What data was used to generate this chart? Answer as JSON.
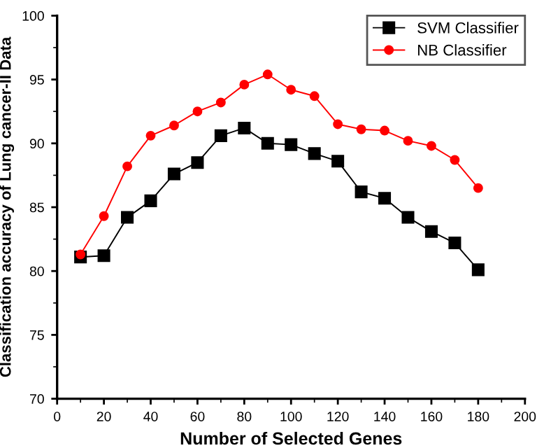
{
  "chart_data": {
    "type": "line",
    "xlabel": "Number of Selected Genes",
    "ylabel": "Classification accuracy of Lung cancer-II Data",
    "x": [
      10,
      20,
      30,
      40,
      50,
      60,
      70,
      80,
      90,
      100,
      110,
      120,
      130,
      140,
      150,
      160,
      170,
      180
    ],
    "series": [
      {
        "name": "SVM Classifier",
        "color": "#000000",
        "marker": "square",
        "values": [
          81.1,
          81.2,
          84.2,
          85.5,
          87.6,
          88.5,
          90.6,
          91.2,
          90.0,
          89.9,
          89.2,
          88.6,
          86.2,
          85.7,
          84.2,
          83.1,
          82.2,
          80.1
        ]
      },
      {
        "name": "NB Classifier",
        "color": "#ff0000",
        "marker": "circle",
        "values": [
          81.3,
          84.3,
          88.2,
          90.6,
          91.4,
          92.5,
          93.2,
          94.6,
          95.4,
          94.2,
          93.7,
          91.5,
          91.1,
          91.0,
          90.2,
          89.8,
          88.7,
          86.5
        ]
      }
    ],
    "xlim": [
      0,
      200
    ],
    "xticks": [
      0,
      20,
      40,
      60,
      80,
      100,
      120,
      140,
      160,
      180,
      200
    ],
    "ylim": [
      70,
      100
    ],
    "yticks": [
      70,
      75,
      80,
      85,
      90,
      95,
      100
    ],
    "grid": false,
    "legend": "top right",
    "line_style": "solid"
  }
}
